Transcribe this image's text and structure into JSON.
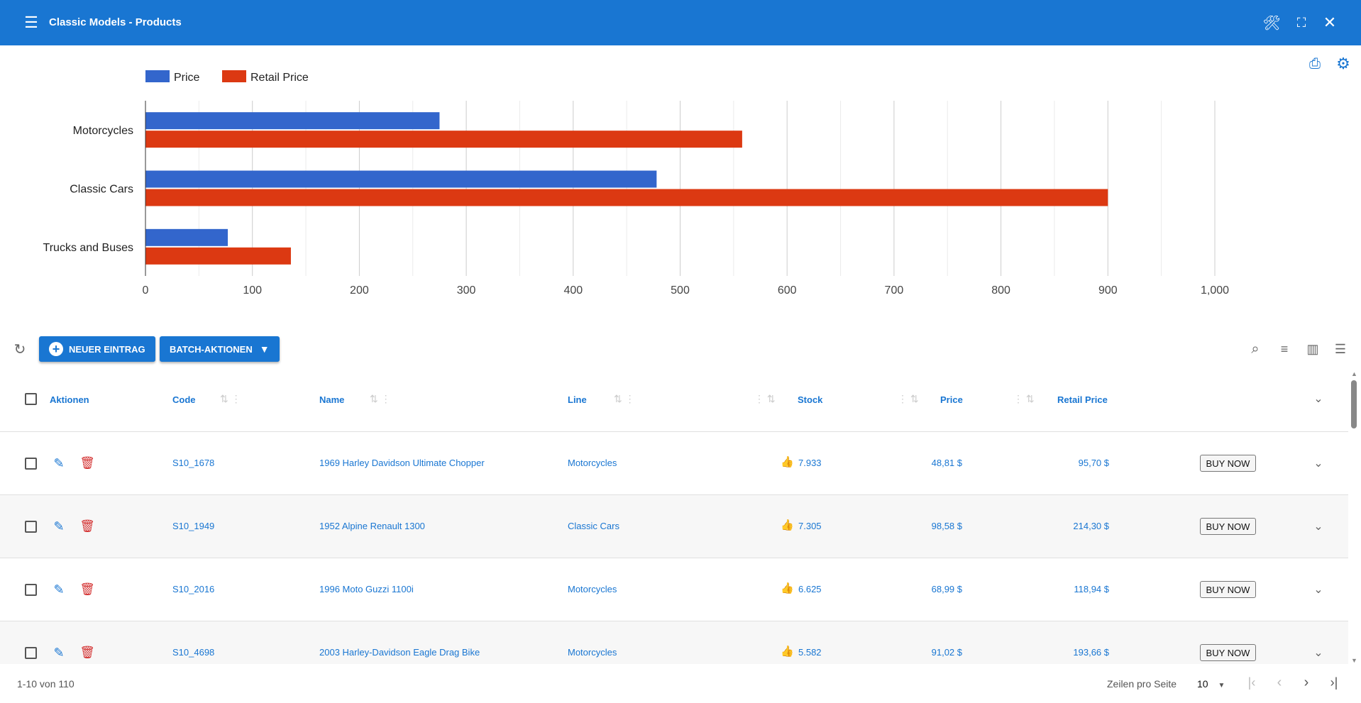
{
  "header": {
    "title": "Classic Models - Products"
  },
  "chart_data": {
    "type": "bar",
    "orientation": "horizontal",
    "categories": [
      "Motorcycles",
      "Classic Cars",
      "Trucks and Buses"
    ],
    "series": [
      {
        "name": "Price",
        "color": "#3366cc",
        "values": [
          275,
          478,
          77
        ]
      },
      {
        "name": "Retail Price",
        "color": "#dc3912",
        "values": [
          558,
          900,
          136
        ]
      }
    ],
    "xlim": [
      0,
      1000
    ],
    "ticks": [
      "0",
      "100",
      "200",
      "300",
      "400",
      "500",
      "600",
      "700",
      "800",
      "900",
      "1,000"
    ],
    "legend": "top-left",
    "grid": true
  },
  "toolbar": {
    "new_label": "NEUER EINTRAG",
    "batch_label": "BATCH-AKTIONEN"
  },
  "columns": {
    "actions": "Aktionen",
    "code": "Code",
    "name": "Name",
    "line": "Line",
    "stock": "Stock",
    "price": "Price",
    "retail": "Retail Price"
  },
  "rows": [
    {
      "code": "S10_1678",
      "name": "1969 Harley Davidson Ultimate Chopper",
      "line": "Motorcycles",
      "stock": "7.933",
      "price": "48,81 $",
      "retail": "95,70 $",
      "buy": "BUY NOW"
    },
    {
      "code": "S10_1949",
      "name": "1952 Alpine Renault 1300",
      "line": "Classic Cars",
      "stock": "7.305",
      "price": "98,58 $",
      "retail": "214,30 $",
      "buy": "BUY NOW"
    },
    {
      "code": "S10_2016",
      "name": "1996 Moto Guzzi 1100i",
      "line": "Motorcycles",
      "stock": "6.625",
      "price": "68,99 $",
      "retail": "118,94 $",
      "buy": "BUY NOW"
    },
    {
      "code": "S10_4698",
      "name": "2003 Harley-Davidson Eagle Drag Bike",
      "line": "Motorcycles",
      "stock": "5.582",
      "price": "91,02 $",
      "retail": "193,66 $",
      "buy": "BUY NOW"
    }
  ],
  "footer": {
    "range": "1-10 von 110",
    "rows_label": "Zeilen pro Seite",
    "rows_value": "10"
  }
}
